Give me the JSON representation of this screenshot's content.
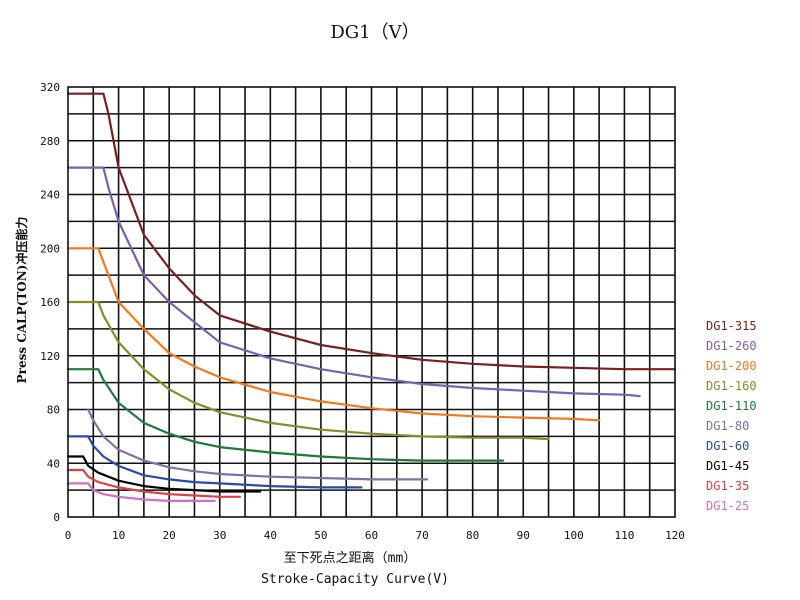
{
  "chart_data": {
    "type": "line",
    "title": "DG1（V）",
    "ylabel": "Press CALP(TON)冲压能力",
    "xlabel": "至下死点之距离（mm）",
    "xlabel2": "Stroke-Capacity Curve(V)",
    "xlim": [
      0,
      120
    ],
    "ylim": [
      0,
      320
    ],
    "xticks": [
      0,
      10,
      20,
      30,
      40,
      50,
      60,
      70,
      80,
      90,
      100,
      110,
      120
    ],
    "yticks": [
      0,
      40,
      80,
      120,
      160,
      200,
      240,
      280,
      320
    ],
    "grid": true,
    "legend_position": "right",
    "series": [
      {
        "name": "DG1-315",
        "color": "#7a1f1f",
        "points": [
          [
            0,
            315
          ],
          [
            7,
            315
          ],
          [
            8,
            300
          ],
          [
            10,
            260
          ],
          [
            15,
            210
          ],
          [
            20,
            185
          ],
          [
            25,
            165
          ],
          [
            30,
            150
          ],
          [
            40,
            138
          ],
          [
            50,
            128
          ],
          [
            60,
            122
          ],
          [
            70,
            117
          ],
          [
            80,
            114
          ],
          [
            90,
            112
          ],
          [
            100,
            111
          ],
          [
            110,
            110
          ],
          [
            120,
            110
          ]
        ]
      },
      {
        "name": "DG1-260",
        "color": "#7b5fb3",
        "points": [
          [
            0,
            260
          ],
          [
            7,
            260
          ],
          [
            8,
            245
          ],
          [
            10,
            220
          ],
          [
            15,
            180
          ],
          [
            20,
            160
          ],
          [
            25,
            145
          ],
          [
            30,
            130
          ],
          [
            40,
            118
          ],
          [
            50,
            110
          ],
          [
            60,
            104
          ],
          [
            70,
            99
          ],
          [
            80,
            96
          ],
          [
            90,
            94
          ],
          [
            100,
            92
          ],
          [
            110,
            91
          ],
          [
            113,
            90
          ]
        ]
      },
      {
        "name": "DG1-200",
        "color": "#f07a20",
        "points": [
          [
            0,
            200
          ],
          [
            6,
            200
          ],
          [
            7,
            190
          ],
          [
            10,
            160
          ],
          [
            15,
            140
          ],
          [
            20,
            122
          ],
          [
            25,
            112
          ],
          [
            30,
            104
          ],
          [
            40,
            93
          ],
          [
            50,
            86
          ],
          [
            60,
            81
          ],
          [
            70,
            77
          ],
          [
            80,
            75
          ],
          [
            90,
            74
          ],
          [
            100,
            73
          ],
          [
            105,
            72
          ]
        ]
      },
      {
        "name": "DG1-160",
        "color": "#8a8a2a",
        "points": [
          [
            0,
            160
          ],
          [
            6,
            160
          ],
          [
            7,
            150
          ],
          [
            10,
            130
          ],
          [
            15,
            110
          ],
          [
            20,
            95
          ],
          [
            25,
            85
          ],
          [
            30,
            78
          ],
          [
            40,
            70
          ],
          [
            50,
            65
          ],
          [
            60,
            62
          ],
          [
            70,
            60
          ],
          [
            80,
            59
          ],
          [
            90,
            59
          ],
          [
            95,
            58
          ]
        ]
      },
      {
        "name": "DG1-110",
        "color": "#1e7a3a",
        "points": [
          [
            0,
            110
          ],
          [
            6,
            110
          ],
          [
            7,
            102
          ],
          [
            10,
            85
          ],
          [
            15,
            70
          ],
          [
            20,
            62
          ],
          [
            25,
            56
          ],
          [
            30,
            52
          ],
          [
            40,
            48
          ],
          [
            50,
            45
          ],
          [
            60,
            43
          ],
          [
            70,
            42
          ],
          [
            80,
            42
          ],
          [
            86,
            42
          ]
        ]
      },
      {
        "name": "DG1-80",
        "color": "#7e72a6",
        "points": [
          [
            4,
            80
          ],
          [
            5,
            72
          ],
          [
            7,
            60
          ],
          [
            10,
            50
          ],
          [
            15,
            42
          ],
          [
            20,
            37
          ],
          [
            25,
            34
          ],
          [
            30,
            32
          ],
          [
            40,
            30
          ],
          [
            50,
            29
          ],
          [
            60,
            28
          ],
          [
            71,
            28
          ]
        ]
      },
      {
        "name": "DG1-60",
        "color": "#2a4aa8",
        "points": [
          [
            0,
            60
          ],
          [
            4,
            60
          ],
          [
            5,
            53
          ],
          [
            7,
            45
          ],
          [
            10,
            38
          ],
          [
            15,
            31
          ],
          [
            20,
            28
          ],
          [
            25,
            26
          ],
          [
            30,
            25
          ],
          [
            40,
            23
          ],
          [
            50,
            22
          ],
          [
            58,
            22
          ]
        ]
      },
      {
        "name": "DG1-45",
        "color": "#000000",
        "points": [
          [
            0,
            45
          ],
          [
            3,
            45
          ],
          [
            4,
            38
          ],
          [
            6,
            33
          ],
          [
            10,
            27
          ],
          [
            15,
            23
          ],
          [
            20,
            21
          ],
          [
            25,
            20
          ],
          [
            30,
            19
          ],
          [
            35,
            19
          ],
          [
            38,
            19
          ]
        ]
      },
      {
        "name": "DG1-35",
        "color": "#e04040",
        "points": [
          [
            0,
            35
          ],
          [
            3,
            35
          ],
          [
            4,
            30
          ],
          [
            6,
            26
          ],
          [
            10,
            22
          ],
          [
            15,
            19
          ],
          [
            20,
            17
          ],
          [
            25,
            16
          ],
          [
            30,
            15
          ],
          [
            34,
            15
          ]
        ]
      },
      {
        "name": "DG1-25",
        "color": "#d070c0",
        "points": [
          [
            0,
            25
          ],
          [
            4,
            25
          ],
          [
            5,
            20
          ],
          [
            7,
            17
          ],
          [
            10,
            15
          ],
          [
            15,
            13
          ],
          [
            20,
            12
          ],
          [
            25,
            12
          ],
          [
            29,
            12
          ]
        ]
      }
    ]
  }
}
